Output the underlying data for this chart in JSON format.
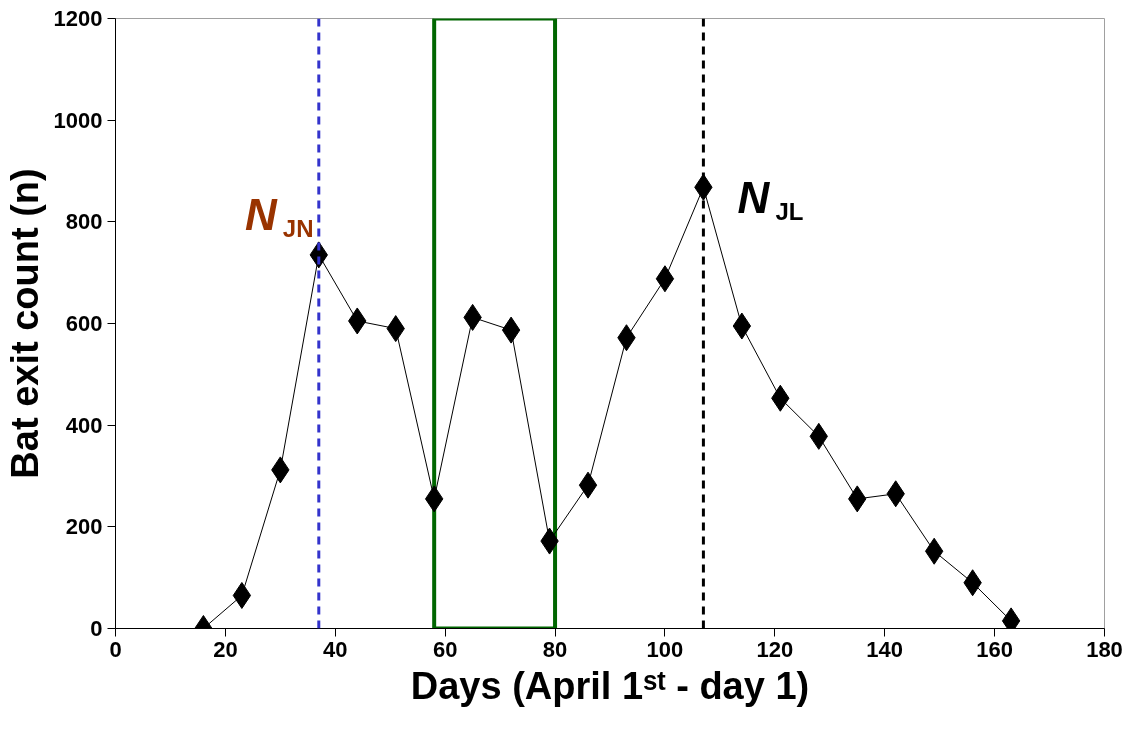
{
  "chart_data": {
    "type": "line",
    "xlabel": "Days (April 1ˢᵗ - day 1)",
    "ylabel": "Bat exit count (n)",
    "x": [
      16,
      23,
      30,
      37,
      44,
      51,
      58,
      65,
      72,
      79,
      86,
      93,
      100,
      107,
      114,
      121,
      128,
      135,
      142,
      149,
      156,
      163
    ],
    "series": [
      {
        "color": "#000000",
        "values": [
          0,
          65,
          312,
          735,
          605,
          590,
          255,
          612,
          587,
          172,
          282,
          572,
          688,
          868,
          595,
          453,
          378,
          255,
          265,
          152,
          90,
          15
        ]
      }
    ],
    "marker": "diamond",
    "line_style": "solid",
    "grid": false,
    "xlim": [
      0,
      180
    ],
    "xticks": [
      0,
      20,
      40,
      60,
      80,
      100,
      120,
      140,
      160,
      180
    ],
    "ylim": [
      0,
      1200
    ],
    "yticks": [
      0,
      200,
      400,
      600,
      800,
      1000,
      1200
    ],
    "ref_lines": [
      {
        "axis": "x",
        "value": 37,
        "color": "#3333cc",
        "line_style": "dashed"
      },
      {
        "axis": "x",
        "value": 107,
        "color": "#000000",
        "line_style": "dashed"
      }
    ],
    "bands": [
      {
        "axis": "x",
        "from": 58,
        "to": 80,
        "color": "#006600"
      }
    ],
    "annotations": [
      {
        "text": "N$_{JN}$",
        "x": 37,
        "y": 735
      },
      {
        "text": "N$_{JL}$",
        "x": 107,
        "y": 868
      }
    ]
  }
}
